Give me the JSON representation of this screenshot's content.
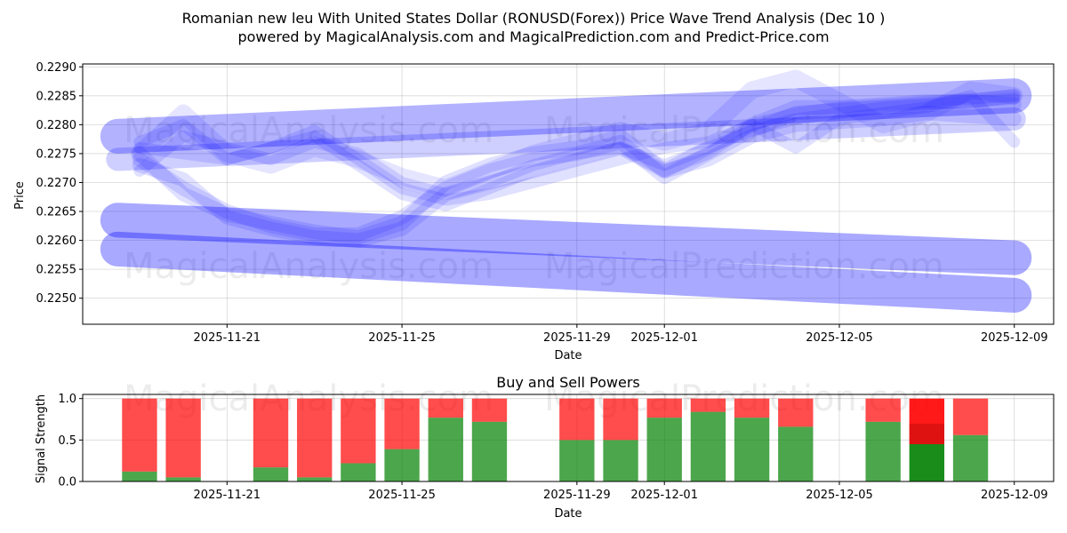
{
  "header": {
    "title": "Romanian new leu With United States Dollar (RONUSD(Forex)) Price Wave Trend Analysis (Dec 10 )",
    "subtitle": "powered by MagicalAnalysis.com and MagicalPrediction.com and Predict-Price.com"
  },
  "watermarks": [
    "MagicalAnalysis.com",
    "MagicalPrediction.com"
  ],
  "colors": {
    "wave": "#0000ff",
    "buy": "#008000",
    "sell": "#ff0000",
    "band": "#4040ff"
  },
  "chart_data": [
    {
      "type": "line",
      "name": "price-wave-trend",
      "xlabel": "Date",
      "ylabel": "Price",
      "xlim": [
        -1.3,
        20.9
      ],
      "ylim": [
        0.22455,
        0.22905
      ],
      "yticks": [
        0.225,
        0.2255,
        0.226,
        0.2265,
        0.227,
        0.2275,
        0.228,
        0.2285,
        0.229
      ],
      "ytick_labels": [
        "0.2250",
        "0.2255",
        "0.2260",
        "0.2265",
        "0.2270",
        "0.2275",
        "0.2280",
        "0.2285",
        "0.2290"
      ],
      "xticks": [
        2,
        6,
        10,
        12,
        16,
        20
      ],
      "xtick_labels": [
        "2025-11-21",
        "2025-11-25",
        "2025-11-29",
        "2025-12-01",
        "2025-12-05",
        "2025-12-09"
      ],
      "grid": true,
      "bands": [
        {
          "x": [
            -0.5,
            20
          ],
          "y": [
            0.22585,
            0.22505
          ],
          "width": 0.0006,
          "opacity": 0.45
        },
        {
          "x": [
            -0.5,
            20
          ],
          "y": [
            0.22635,
            0.2257
          ],
          "width": 0.0006,
          "opacity": 0.45
        },
        {
          "x": [
            -0.5,
            20
          ],
          "y": [
            0.2278,
            0.2285
          ],
          "width": 0.0006,
          "opacity": 0.4
        },
        {
          "x": [
            -0.5,
            20
          ],
          "y": [
            0.2274,
            0.2281
          ],
          "width": 0.0004,
          "opacity": 0.25
        }
      ],
      "series": [
        {
          "name": "wave-1",
          "width": 0.00025,
          "opacity": 0.12,
          "x": [
            0,
            1,
            2,
            3,
            4,
            5,
            6,
            7,
            8,
            9,
            10,
            11,
            12,
            13,
            14,
            15,
            16,
            17,
            18,
            19,
            20
          ],
          "y": [
            0.2273,
            0.22705,
            0.2264,
            0.2262,
            0.22605,
            0.226,
            0.2262,
            0.2268,
            0.227,
            0.2272,
            0.2274,
            0.2276,
            0.2272,
            0.2274,
            0.2278,
            0.228,
            0.22805,
            0.2281,
            0.2282,
            0.22815,
            0.2281
          ]
        },
        {
          "name": "wave-2",
          "width": 0.00025,
          "opacity": 0.12,
          "x": [
            0,
            1,
            2,
            3,
            4,
            5,
            6,
            7,
            8,
            9,
            10,
            11,
            12,
            13,
            14,
            15,
            16,
            17,
            18,
            19,
            20
          ],
          "y": [
            0.2274,
            0.2269,
            0.2265,
            0.22625,
            0.2261,
            0.2261,
            0.2264,
            0.2269,
            0.2272,
            0.2274,
            0.2275,
            0.2277,
            0.2271,
            0.2275,
            0.2279,
            0.2282,
            0.22825,
            0.2283,
            0.22835,
            0.2284,
            0.22835
          ]
        },
        {
          "name": "wave-3",
          "width": 0.00025,
          "opacity": 0.12,
          "x": [
            0,
            1,
            2,
            3,
            4,
            5,
            6,
            7,
            8,
            9,
            10,
            11,
            12,
            13,
            14,
            15,
            16,
            17,
            18,
            19,
            20
          ],
          "y": [
            0.2275,
            0.2268,
            0.22645,
            0.2263,
            0.22615,
            0.22605,
            0.2263,
            0.227,
            0.2273,
            0.2275,
            0.2276,
            0.2278,
            0.2272,
            0.2276,
            0.228,
            0.2283,
            0.2283,
            0.22835,
            0.2284,
            0.2284,
            0.2285
          ]
        },
        {
          "name": "wave-4",
          "width": 0.0002,
          "opacity": 0.12,
          "x": [
            0,
            1,
            2,
            3,
            4,
            5,
            6,
            7,
            8,
            9,
            10,
            11,
            12,
            13,
            14,
            15,
            16,
            17,
            18,
            19,
            20
          ],
          "y": [
            0.2276,
            0.2275,
            0.2274,
            0.2276,
            0.2279,
            0.2274,
            0.2269,
            0.2267,
            0.2268,
            0.227,
            0.2272,
            0.2274,
            0.2276,
            0.2277,
            0.228,
            0.2282,
            0.2283,
            0.22835,
            0.2284,
            0.22845,
            0.2285
          ]
        },
        {
          "name": "wave-5",
          "width": 0.0002,
          "opacity": 0.12,
          "x": [
            0,
            1,
            2,
            3,
            4,
            5,
            6,
            7,
            8,
            9,
            10,
            11,
            12,
            13,
            14,
            15,
            16,
            17,
            18,
            19,
            20
          ],
          "y": [
            0.2277,
            0.228,
            0.2274,
            0.2276,
            0.2278,
            0.2273,
            0.2268,
            0.2266,
            0.2269,
            0.2272,
            0.2274,
            0.2276,
            0.2273,
            0.2276,
            0.2279,
            0.2281,
            0.2282,
            0.2283,
            0.22835,
            0.2284,
            0.22845
          ]
        },
        {
          "name": "wave-6",
          "width": 0.0002,
          "opacity": 0.12,
          "x": [
            0,
            1,
            2,
            3,
            4,
            5,
            6,
            7,
            8,
            9,
            10,
            11,
            12,
            13,
            14,
            15,
            16,
            17,
            18,
            19,
            20
          ],
          "y": [
            0.2272,
            0.2278,
            0.2276,
            0.2274,
            0.2277,
            0.2275,
            0.227,
            0.2268,
            0.227,
            0.2273,
            0.2275,
            0.2276,
            0.2272,
            0.2275,
            0.228,
            0.2276,
            0.2281,
            0.2282,
            0.2283,
            0.2285,
            0.2277
          ]
        },
        {
          "name": "wave-7",
          "width": 0.0003,
          "opacity": 0.1,
          "x": [
            0,
            1,
            2,
            3,
            4,
            5,
            6,
            7,
            8,
            9,
            10,
            11,
            12,
            13,
            14,
            15,
            16,
            17,
            18,
            19,
            20
          ],
          "y": [
            0.2275,
            0.2282,
            0.2275,
            0.2273,
            0.2276,
            0.2274,
            0.2271,
            0.2269,
            0.2272,
            0.2275,
            0.2277,
            0.2279,
            0.2277,
            0.2279,
            0.2286,
            0.2288,
            0.2284,
            0.228,
            0.2282,
            0.2286,
            0.2285
          ]
        }
      ]
    },
    {
      "type": "bar",
      "name": "buy-sell-powers",
      "title": "Buy and Sell Powers",
      "xlabel": "Date",
      "ylabel": "Signal Strength",
      "ylim": [
        0,
        1.05
      ],
      "xlim": [
        -1.3,
        20.9
      ],
      "yticks": [
        0.0,
        0.5,
        1.0
      ],
      "ytick_labels": [
        "0.0",
        "0.5",
        "1.0"
      ],
      "xticks": [
        2,
        6,
        10,
        12,
        16,
        20
      ],
      "xtick_labels": [
        "2025-11-21",
        "2025-11-25",
        "2025-11-29",
        "2025-12-01",
        "2025-12-05",
        "2025-12-09"
      ],
      "grid": true,
      "x": [
        0,
        1,
        3,
        4,
        5,
        6,
        7,
        8,
        10,
        11,
        12,
        13,
        14,
        15,
        17,
        18,
        19
      ],
      "series": [
        {
          "name": "Buy",
          "values": [
            0.12,
            0.05,
            0.17,
            0.05,
            0.22,
            0.39,
            0.77,
            0.72,
            0.5,
            0.5,
            0.77,
            0.84,
            0.77,
            0.66,
            0.72,
            0.45,
            0.56
          ]
        },
        {
          "name": "Sell",
          "values": [
            0.88,
            0.95,
            0.83,
            0.95,
            0.78,
            0.61,
            0.23,
            0.28,
            0.5,
            0.5,
            0.23,
            0.16,
            0.23,
            0.34,
            0.28,
            0.55,
            0.44
          ]
        }
      ],
      "highlight_index": 15
    }
  ]
}
